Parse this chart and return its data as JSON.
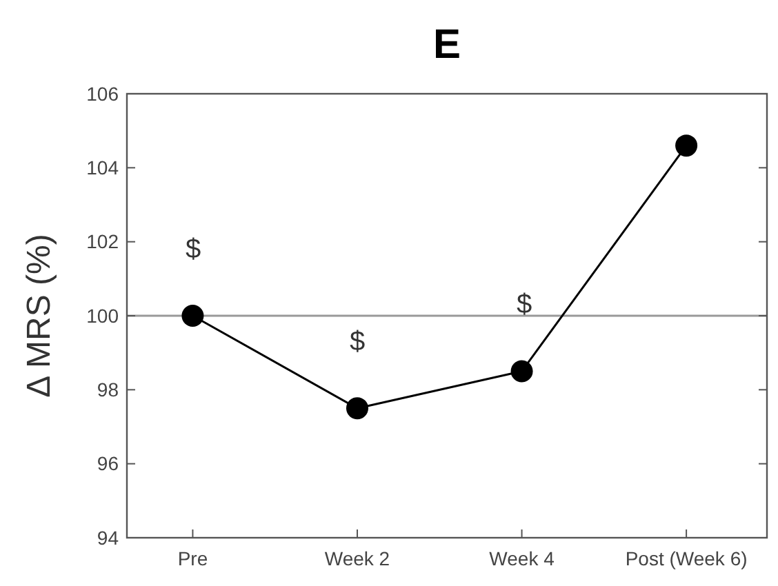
{
  "chart_data": {
    "type": "line",
    "title": "E",
    "ylabel": "Δ MRS (%)",
    "categories": [
      "Pre",
      "Week 2",
      "Week 4",
      "Post (Week 6)"
    ],
    "series": [
      {
        "color": "#000000",
        "values": [
          100,
          97.5,
          98.5,
          104.6
        ]
      }
    ],
    "ylim": [
      94,
      106
    ],
    "yticks": [
      94,
      96,
      98,
      100,
      102,
      104,
      106
    ],
    "marker": "circle",
    "line_style": "solid",
    "grid": false,
    "ref_lines": [
      {
        "axis": "y",
        "value": 100,
        "color": "#999999"
      }
    ],
    "annotations": [
      "$",
      "$",
      "$"
    ]
  }
}
